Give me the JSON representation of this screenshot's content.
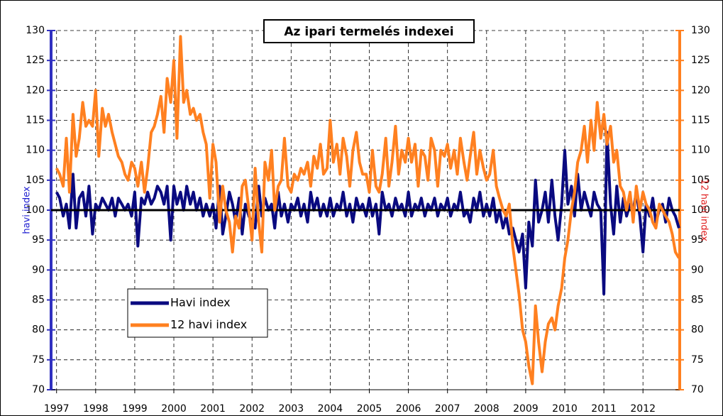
{
  "chart_data": {
    "type": "line",
    "title": "Az ipari termelés indexei",
    "y_label": "havi index",
    "y2_label": "12 havi index",
    "x": [
      1997,
      1997.08,
      1997.17,
      1997.25,
      1997.33,
      1997.42,
      1997.5,
      1997.58,
      1997.67,
      1997.75,
      1997.83,
      1997.92,
      1998,
      1998.08,
      1998.17,
      1998.25,
      1998.33,
      1998.42,
      1998.5,
      1998.58,
      1998.67,
      1998.75,
      1998.83,
      1998.92,
      1999,
      1999.08,
      1999.17,
      1999.25,
      1999.33,
      1999.42,
      1999.5,
      1999.58,
      1999.67,
      1999.75,
      1999.83,
      1999.92,
      2000,
      2000.08,
      2000.17,
      2000.25,
      2000.33,
      2000.42,
      2000.5,
      2000.58,
      2000.67,
      2000.75,
      2000.83,
      2000.92,
      2001,
      2001.08,
      2001.17,
      2001.25,
      2001.33,
      2001.42,
      2001.5,
      2001.58,
      2001.67,
      2001.75,
      2001.83,
      2001.92,
      2002,
      2002.08,
      2002.17,
      2002.25,
      2002.33,
      2002.42,
      2002.5,
      2002.58,
      2002.67,
      2002.75,
      2002.83,
      2002.92,
      2003,
      2003.08,
      2003.17,
      2003.25,
      2003.33,
      2003.42,
      2003.5,
      2003.58,
      2003.67,
      2003.75,
      2003.83,
      2003.92,
      2004,
      2004.08,
      2004.17,
      2004.25,
      2004.33,
      2004.42,
      2004.5,
      2004.58,
      2004.67,
      2004.75,
      2004.83,
      2004.92,
      2005,
      2005.08,
      2005.17,
      2005.25,
      2005.33,
      2005.42,
      2005.5,
      2005.58,
      2005.67,
      2005.75,
      2005.83,
      2005.92,
      2006,
      2006.08,
      2006.17,
      2006.25,
      2006.33,
      2006.42,
      2006.5,
      2006.58,
      2006.67,
      2006.75,
      2006.83,
      2006.92,
      2007,
      2007.08,
      2007.17,
      2007.25,
      2007.33,
      2007.42,
      2007.5,
      2007.58,
      2007.67,
      2007.75,
      2007.83,
      2007.92,
      2008,
      2008.08,
      2008.17,
      2008.25,
      2008.33,
      2008.42,
      2008.5,
      2008.58,
      2008.67,
      2008.75,
      2008.83,
      2008.92,
      2009,
      2009.08,
      2009.17,
      2009.25,
      2009.33,
      2009.42,
      2009.5,
      2009.58,
      2009.67,
      2009.75,
      2009.83,
      2009.92,
      2010,
      2010.08,
      2010.17,
      2010.25,
      2010.33,
      2010.42,
      2010.5,
      2010.58,
      2010.67,
      2010.75,
      2010.83,
      2010.92,
      2011,
      2011.08,
      2011.17,
      2011.25,
      2011.33,
      2011.42,
      2011.5,
      2011.58,
      2011.67,
      2011.75,
      2011.83,
      2011.92,
      2012,
      2012.08,
      2012.17,
      2012.25,
      2012.33,
      2012.42,
      2012.5,
      2012.58,
      2012.67,
      2012.75,
      2012.83,
      2012.92
    ],
    "series": [
      {
        "name": "Havi index",
        "color": "#0a0a80",
        "axis": "y",
        "values": [
          103,
          102,
          99,
          101,
          97,
          106,
          97,
          102,
          103,
          99,
          104,
          96,
          101,
          100,
          102,
          101,
          100,
          102,
          99,
          102,
          101,
          100,
          101,
          99,
          103,
          94,
          102,
          101,
          103,
          101,
          102,
          104,
          103,
          101,
          104,
          95,
          104,
          101,
          103,
          100,
          104,
          101,
          103,
          100,
          102,
          99,
          101,
          99,
          101,
          97,
          104,
          96,
          99,
          103,
          101,
          98,
          102,
          96,
          101,
          99,
          98,
          97,
          104,
          99,
          102,
          100,
          101,
          97,
          103,
          99,
          101,
          98,
          101,
          100,
          102,
          99,
          101,
          98,
          103,
          100,
          102,
          99,
          101,
          99,
          102,
          99,
          101,
          100,
          103,
          99,
          101,
          98,
          102,
          100,
          101,
          99,
          102,
          99,
          101,
          96,
          103,
          100,
          101,
          99,
          102,
          100,
          101,
          99,
          103,
          99,
          101,
          100,
          102,
          99,
          101,
          100,
          102,
          99,
          101,
          100,
          102,
          99,
          101,
          100,
          103,
          99,
          100,
          98,
          102,
          100,
          103,
          99,
          101,
          99,
          102,
          98,
          100,
          97,
          99,
          96,
          97,
          95,
          93,
          96,
          87,
          98,
          94,
          105,
          98,
          100,
          103,
          98,
          105,
          99,
          95,
          101,
          110,
          101,
          104,
          99,
          106,
          100,
          103,
          101,
          99,
          103,
          101,
          100,
          86,
          113,
          101,
          96,
          104,
          98,
          102,
          99,
          101,
          100,
          103,
          99,
          93,
          101,
          99,
          102,
          98,
          100,
          101,
          98,
          102,
          100,
          99,
          97
        ]
      },
      {
        "name": "12 havi index",
        "color": "#ff8020",
        "axis": "y2",
        "values": [
          107,
          106,
          104,
          112,
          103,
          116,
          109,
          112,
          118,
          114,
          115,
          114,
          120,
          109,
          117,
          114,
          116,
          113,
          111,
          109,
          108,
          106,
          105,
          108,
          107,
          104,
          108,
          103,
          107,
          113,
          114,
          116,
          119,
          113,
          122,
          118,
          125,
          112,
          129,
          118,
          120,
          116,
          117,
          115,
          116,
          113,
          111,
          102,
          111,
          108,
          98,
          104,
          100,
          98,
          93,
          99,
          97,
          104,
          105,
          100,
          95,
          107,
          98,
          93,
          108,
          105,
          110,
          100,
          104,
          105,
          112,
          104,
          103,
          106,
          105,
          107,
          106,
          108,
          104,
          109,
          107,
          111,
          106,
          107,
          115,
          108,
          111,
          106,
          112,
          109,
          104,
          110,
          113,
          108,
          106,
          106,
          103,
          110,
          104,
          103,
          106,
          112,
          104,
          108,
          114,
          106,
          110,
          108,
          112,
          108,
          111,
          104,
          110,
          109,
          105,
          112,
          110,
          104,
          110,
          109,
          111,
          107,
          110,
          106,
          112,
          108,
          105,
          109,
          113,
          106,
          110,
          107,
          105,
          106,
          110,
          104,
          102,
          100,
          99,
          101,
          94,
          90,
          86,
          80,
          78,
          74,
          71,
          84,
          78,
          73,
          78,
          81,
          82,
          80,
          84,
          87,
          92,
          95,
          100,
          103,
          108,
          110,
          114,
          108,
          115,
          110,
          118,
          112,
          116,
          111,
          114,
          108,
          110,
          104,
          103,
          100,
          103,
          98,
          104,
          100,
          103,
          101,
          100,
          98,
          97,
          101,
          100,
          99,
          98,
          96,
          93,
          92
        ]
      }
    ],
    "reference_line": 100,
    "xlim": [
      1996.86,
      2012.94
    ],
    "xticks": [
      1997,
      1998,
      1999,
      2000,
      2001,
      2002,
      2003,
      2004,
      2005,
      2006,
      2007,
      2008,
      2009,
      2010,
      2011,
      2012
    ],
    "ylim": [
      70,
      130
    ],
    "yticks": [
      70,
      75,
      80,
      85,
      90,
      95,
      100,
      105,
      110,
      115,
      120,
      125,
      130
    ],
    "y2lim": [
      70,
      130
    ],
    "y2ticks": [
      70,
      75,
      80,
      85,
      90,
      95,
      100,
      105,
      110,
      115,
      120,
      125,
      130
    ],
    "grid": true,
    "legend": "lower left"
  }
}
